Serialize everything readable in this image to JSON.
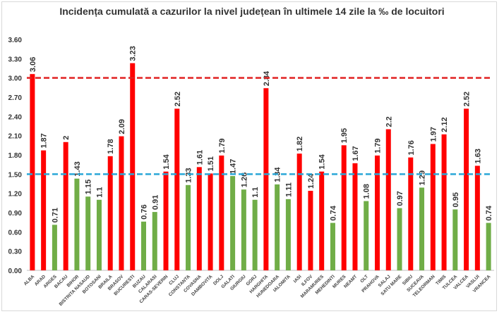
{
  "chart_data": {
    "type": "bar",
    "title": "Incidența cumulată a cazurilor la nivel județean în ultimele 14 zile la ‰ de locuitori",
    "xlabel": "",
    "ylabel": "",
    "ylim": [
      0,
      3.6
    ],
    "yticks": [
      "0.00",
      "0.30",
      "0.60",
      "0.90",
      "1.20",
      "1.50",
      "1.80",
      "2.10",
      "2.40",
      "2.70",
      "3.00",
      "3.30",
      "3.60"
    ],
    "grid": false,
    "categories": [
      "ALBA",
      "ARAD",
      "ARGES",
      "BACAU",
      "BIHOR",
      "BISTRITA NASAUD",
      "BOTOSANI",
      "BRAILA",
      "BRASOV",
      "BUCURESTI",
      "BUZAU",
      "CALARASI",
      "CARAS-SEVERIN",
      "CLUJ",
      "CONSTANTA",
      "COVASNA",
      "DAMBOVITA",
      "DOLJ",
      "GALATI",
      "GIURGIU",
      "GORJ",
      "HARGHITA",
      "HUNEDOARA",
      "IALOMITA",
      "IASI",
      "ILFOV",
      "MARAMURES",
      "MEHEDINTI",
      "MURES",
      "NEAMT",
      "OLT",
      "PRAHOVA",
      "SALAJ",
      "SATU MARE",
      "SIBIU",
      "SUCEAVA",
      "TELEORMAN",
      "TIMIS",
      "TULCEA",
      "VALCEA",
      "VASLUI",
      "VRANCEA"
    ],
    "values": [
      3.06,
      1.87,
      0.71,
      2,
      1.43,
      1.15,
      1.1,
      1.78,
      2.09,
      3.23,
      0.76,
      0.91,
      1.54,
      2.52,
      1.33,
      1.61,
      1.51,
      1.79,
      1.47,
      1.26,
      1.1,
      2.84,
      1.34,
      1.11,
      1.82,
      1.24,
      1.54,
      0.74,
      1.95,
      1.67,
      1.08,
      1.79,
      2.2,
      0.97,
      1.76,
      1.29,
      1.97,
      2.12,
      0.95,
      2.52,
      1.63,
      0.74
    ],
    "bar_colors": [
      "r",
      "r",
      "g",
      "r",
      "g",
      "g",
      "g",
      "r",
      "r",
      "r",
      "g",
      "g",
      "r",
      "r",
      "g",
      "r",
      "r",
      "r",
      "g",
      "g",
      "g",
      "r",
      "g",
      "g",
      "r",
      "r",
      "r",
      "g",
      "r",
      "r",
      "g",
      "r",
      "r",
      "g",
      "r",
      "g",
      "r",
      "r",
      "g",
      "r",
      "r",
      "g"
    ],
    "colors": {
      "r": "#ff0000",
      "g": "#70ad47"
    },
    "reference_lines": [
      {
        "value": 3.0,
        "color": "#e02020",
        "style": "dashed"
      },
      {
        "value": 1.5,
        "color": "#2aa7d8",
        "style": "dashed"
      }
    ]
  }
}
